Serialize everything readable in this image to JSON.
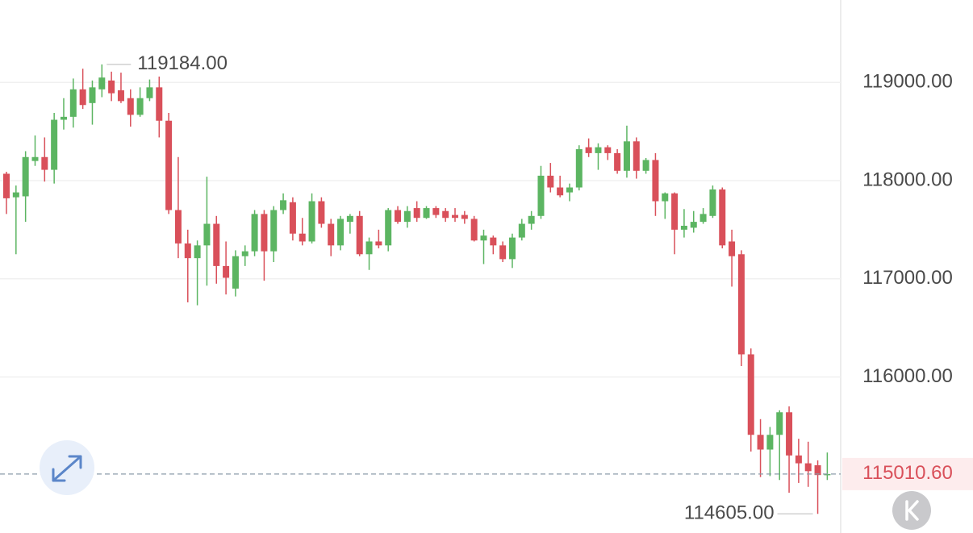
{
  "chart_data": {
    "type": "candlestick",
    "up_color": "#5cb562",
    "down_color": "#d9505a",
    "ylim": [
      114410,
      119840
    ],
    "yticks": [
      {
        "value": 116000,
        "label": "116000.00"
      },
      {
        "value": 117000,
        "label": "117000.00"
      },
      {
        "value": 118000,
        "label": "118000.00"
      },
      {
        "value": 119000,
        "label": "119000.00"
      }
    ],
    "grid": true,
    "open": [
      118070,
      117830,
      117840,
      118200,
      118240,
      118110,
      118620,
      118650,
      118930,
      118790,
      118930,
      119020,
      118920,
      118840,
      118670,
      118840,
      118950,
      118610,
      117700,
      117360,
      117210,
      117340,
      117560,
      117130,
      116900,
      117230,
      117280,
      117660,
      117280,
      117700,
      117780,
      117460,
      117380,
      117790,
      117560,
      117340,
      117580,
      117640,
      117250,
      117380,
      117340,
      117700,
      117580,
      117720,
      117620,
      117720,
      117690,
      117650,
      117650,
      117610,
      117390,
      117420,
      117340,
      117200,
      117420,
      117560,
      117640,
      118050,
      117930,
      117880,
      117930,
      118340,
      118280,
      118340,
      118280,
      118100,
      118400,
      118100,
      118210,
      117790,
      117870,
      117500,
      117520,
      117580,
      117640,
      117910,
      117380,
      117250,
      116230,
      115410,
      115260,
      115410,
      115640,
      115200,
      115120,
      115100,
      115000
    ],
    "high": [
      118090,
      117950,
      118300,
      118460,
      118440,
      118690,
      118840,
      119040,
      119140,
      119020,
      119184,
      119110,
      119100,
      118930,
      118950,
      119030,
      119060,
      118690,
      118240,
      117500,
      117390,
      118040,
      117640,
      117380,
      117290,
      117340,
      117700,
      117700,
      117740,
      117870,
      117830,
      117620,
      117870,
      117830,
      117610,
      117640,
      117660,
      117690,
      117420,
      117500,
      117720,
      117740,
      117740,
      117790,
      117740,
      117740,
      117720,
      117720,
      117690,
      117640,
      117500,
      117440,
      117380,
      117460,
      117610,
      117690,
      118150,
      118180,
      118050,
      117970,
      118360,
      118430,
      118380,
      118360,
      118320,
      118560,
      118440,
      118230,
      118280,
      117880,
      117880,
      117710,
      117690,
      117720,
      117950,
      117930,
      117500,
      117290,
      116290,
      115570,
      115490,
      115660,
      115700,
      115370,
      115340,
      115150,
      115230
    ],
    "low": [
      117660,
      117250,
      117580,
      118150,
      117990,
      117970,
      118520,
      118540,
      118730,
      118570,
      118850,
      118810,
      118790,
      118550,
      118650,
      118810,
      118440,
      117660,
      117210,
      116760,
      116730,
      116930,
      116950,
      116840,
      116820,
      117130,
      117230,
      116980,
      117170,
      117660,
      117390,
      117340,
      117360,
      117520,
      117230,
      117290,
      117460,
      117230,
      117090,
      117310,
      117280,
      117560,
      117520,
      117580,
      117610,
      117620,
      117580,
      117580,
      117560,
      117380,
      117150,
      117250,
      117170,
      117110,
      117390,
      117500,
      117610,
      117880,
      117830,
      117790,
      117900,
      118240,
      118110,
      118210,
      118070,
      118030,
      118020,
      118070,
      117640,
      117610,
      117250,
      117420,
      117470,
      117560,
      117620,
      117310,
      116920,
      116110,
      115240,
      114980,
      114990,
      114950,
      114820,
      114920,
      114880,
      114605,
      114950
    ],
    "close": [
      117820,
      117880,
      118240,
      118240,
      118110,
      118620,
      118650,
      118930,
      118770,
      118950,
      119050,
      118890,
      118810,
      118670,
      118840,
      118950,
      118610,
      117700,
      117360,
      117210,
      117340,
      117560,
      117130,
      117010,
      117230,
      117280,
      117660,
      117280,
      117700,
      117800,
      117460,
      117380,
      117790,
      117560,
      117340,
      117610,
      117640,
      117250,
      117380,
      117340,
      117700,
      117580,
      117690,
      117620,
      117720,
      117650,
      117620,
      117620,
      117610,
      117390,
      117440,
      117340,
      117200,
      117420,
      117560,
      117640,
      118050,
      117930,
      117850,
      117930,
      118320,
      118280,
      118340,
      118280,
      118100,
      118400,
      118100,
      118210,
      117790,
      117870,
      117500,
      117540,
      117580,
      117660,
      117910,
      117340,
      117230,
      116230,
      115410,
      115260,
      115410,
      115640,
      115200,
      115120,
      115040,
      115000,
      115010.6
    ],
    "max_label": {
      "value": 119184,
      "label": "119184.00"
    },
    "min_label": {
      "value": 114605,
      "label": "114605.00"
    },
    "last_price": {
      "value": 115010.6,
      "label": "115010.60"
    }
  }
}
